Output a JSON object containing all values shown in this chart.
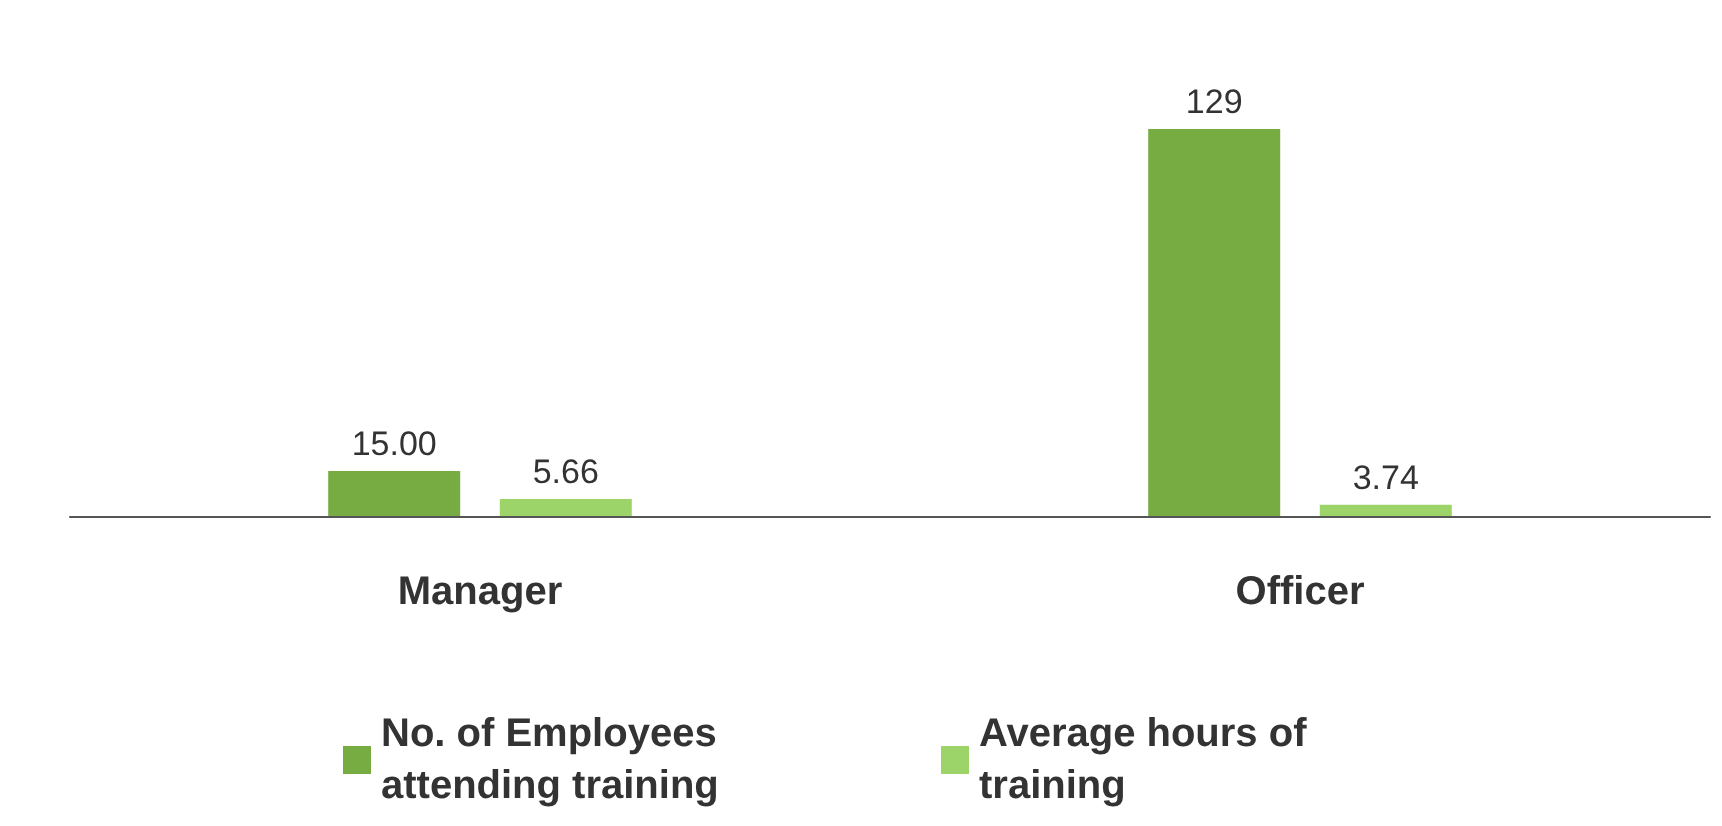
{
  "chart_data": {
    "type": "bar",
    "categories": [
      "Manager",
      "Officer"
    ],
    "series": [
      {
        "name": "No. of Employees attending training",
        "color": "#77ac43",
        "values": [
          15,
          129
        ],
        "value_labels": [
          "15.00",
          "129"
        ]
      },
      {
        "name": "Average hours of training",
        "color": "#9dd46a",
        "values": [
          5.66,
          3.74
        ],
        "value_labels": [
          "5.66",
          "3.74"
        ]
      }
    ],
    "legend": "bottom"
  }
}
